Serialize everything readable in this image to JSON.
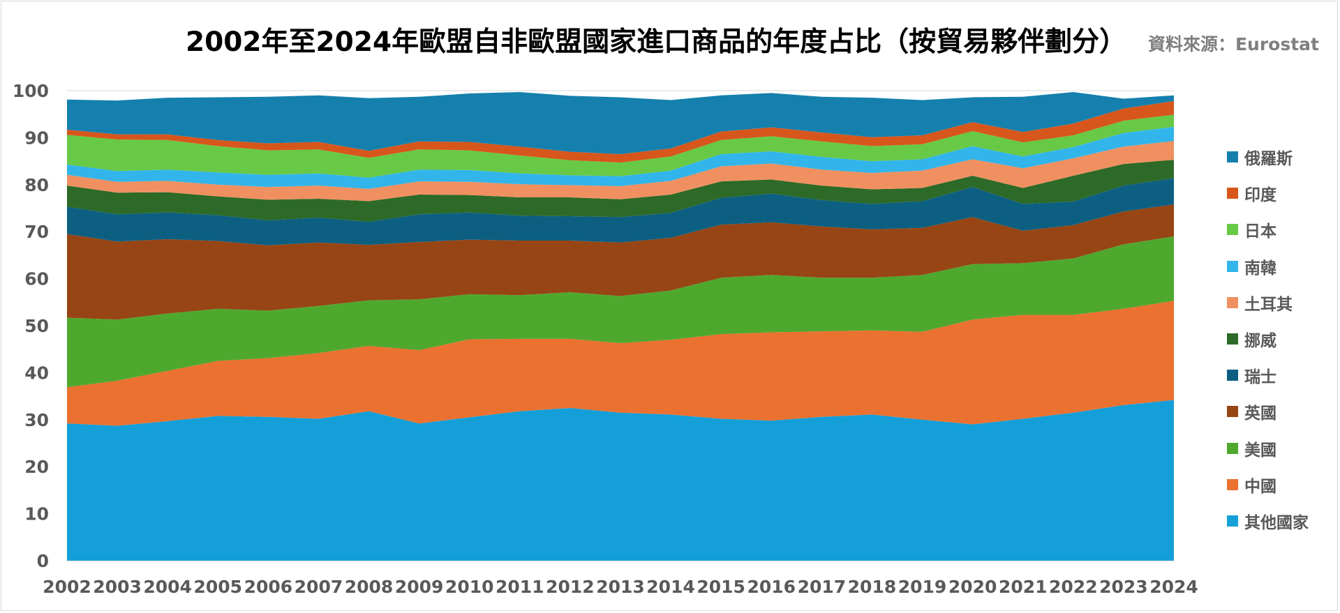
{
  "title": "2002年至2024年歐盟自非歐盟國家進口商品的年度占比（按貿易夥伴劃分）",
  "source": "資料來源：Eurostat",
  "chart_data": {
    "type": "area",
    "stacked": true,
    "title": "2002年至2024年歐盟自非歐盟國家進口商品的年度占比（按貿易夥伴劃分）",
    "xlabel": "",
    "ylabel": "",
    "ylim": [
      0,
      100
    ],
    "yticks": [
      0,
      10,
      20,
      30,
      40,
      50,
      60,
      70,
      80,
      90,
      100
    ],
    "grid": true,
    "legend_position": "right",
    "x": [
      "2002",
      "2003",
      "2004",
      "2005",
      "2006",
      "2007",
      "2008",
      "2009",
      "2010",
      "2011",
      "2012",
      "2013",
      "2014",
      "2015",
      "2016",
      "2017",
      "2018",
      "2019",
      "2020",
      "2021",
      "2022",
      "2023",
      "2024"
    ],
    "series": [
      {
        "name": "其他國家",
        "color": "#159fd9",
        "values": [
          29.2,
          28.7,
          29.7,
          30.8,
          30.6,
          30.2,
          31.8,
          29.2,
          30.5,
          31.8,
          32.5,
          31.5,
          31.1,
          30.2,
          29.8,
          30.6,
          31.1,
          30.0,
          29.0,
          30.2,
          31.5,
          33.1,
          34.2
        ]
      },
      {
        "name": "中國",
        "color": "#ea7130",
        "values": [
          7.7,
          9.6,
          10.7,
          11.7,
          12.5,
          14.0,
          13.9,
          15.6,
          16.6,
          15.4,
          14.7,
          14.8,
          15.9,
          18.0,
          18.8,
          18.2,
          17.9,
          18.7,
          22.3,
          22.1,
          20.8,
          20.5,
          21.1
        ]
      },
      {
        "name": "美國",
        "color": "#4fa82e",
        "values": [
          14.8,
          13.0,
          12.2,
          11.1,
          10.1,
          10.0,
          9.7,
          10.8,
          9.6,
          9.3,
          9.9,
          10.0,
          10.5,
          12.0,
          12.2,
          11.4,
          11.2,
          12.1,
          11.8,
          11.0,
          12.0,
          13.7,
          13.7
        ]
      },
      {
        "name": "英國",
        "color": "#974514",
        "values": [
          17.8,
          16.6,
          15.8,
          14.4,
          13.9,
          13.5,
          11.8,
          12.2,
          11.6,
          11.6,
          11.0,
          11.4,
          11.2,
          11.3,
          11.2,
          10.9,
          10.3,
          10.0,
          10.0,
          6.9,
          7.1,
          7.0,
          6.8
        ]
      },
      {
        "name": "瑞士",
        "color": "#0d5f82",
        "values": [
          5.8,
          5.8,
          5.7,
          5.5,
          5.3,
          5.3,
          4.9,
          5.9,
          5.8,
          5.3,
          5.2,
          5.4,
          5.3,
          5.7,
          6.1,
          5.6,
          5.4,
          5.7,
          6.4,
          5.7,
          5.0,
          5.5,
          5.6
        ]
      },
      {
        "name": "挪威",
        "color": "#2d6a28",
        "values": [
          4.5,
          4.6,
          4.3,
          4.0,
          4.4,
          4.0,
          4.4,
          4.2,
          3.7,
          3.9,
          4.0,
          3.8,
          3.9,
          3.5,
          3.0,
          3.1,
          3.1,
          2.8,
          2.4,
          3.4,
          5.5,
          4.6,
          3.9
        ]
      },
      {
        "name": "土耳其",
        "color": "#f09060",
        "values": [
          2.3,
          2.3,
          2.4,
          2.5,
          2.7,
          2.8,
          2.6,
          2.8,
          2.8,
          2.8,
          2.6,
          2.8,
          2.9,
          3.2,
          3.4,
          3.4,
          3.5,
          3.7,
          3.5,
          4.2,
          3.7,
          3.7,
          4.0
        ]
      },
      {
        "name": "南韓",
        "color": "#32b5ea",
        "values": [
          2.2,
          2.3,
          2.4,
          2.6,
          2.6,
          2.6,
          2.4,
          2.5,
          2.5,
          2.3,
          2.1,
          2.1,
          2.2,
          2.6,
          2.6,
          2.7,
          2.5,
          2.4,
          2.8,
          2.5,
          2.4,
          2.9,
          3.0
        ]
      },
      {
        "name": "日本",
        "color": "#68c946",
        "values": [
          6.3,
          6.7,
          6.3,
          5.6,
          5.2,
          5.1,
          4.2,
          4.3,
          4.2,
          3.8,
          3.2,
          2.9,
          3.0,
          3.0,
          3.2,
          3.3,
          3.2,
          3.2,
          3.2,
          3.0,
          2.5,
          2.6,
          2.6
        ]
      },
      {
        "name": "印度",
        "color": "#d7561c",
        "values": [
          1.1,
          1.1,
          1.2,
          1.3,
          1.5,
          1.6,
          1.5,
          1.7,
          1.8,
          1.9,
          1.8,
          1.8,
          1.7,
          1.8,
          1.9,
          1.9,
          1.9,
          1.9,
          1.9,
          2.2,
          2.5,
          2.6,
          2.9
        ]
      },
      {
        "name": "俄羅斯",
        "color": "#1580ad",
        "values": [
          6.4,
          7.2,
          7.8,
          9.1,
          9.9,
          9.9,
          11.2,
          9.5,
          10.3,
          11.6,
          11.9,
          12.1,
          10.3,
          7.7,
          7.3,
          7.6,
          8.4,
          7.5,
          5.3,
          7.5,
          6.7,
          2.1,
          1.2
        ]
      }
    ]
  }
}
